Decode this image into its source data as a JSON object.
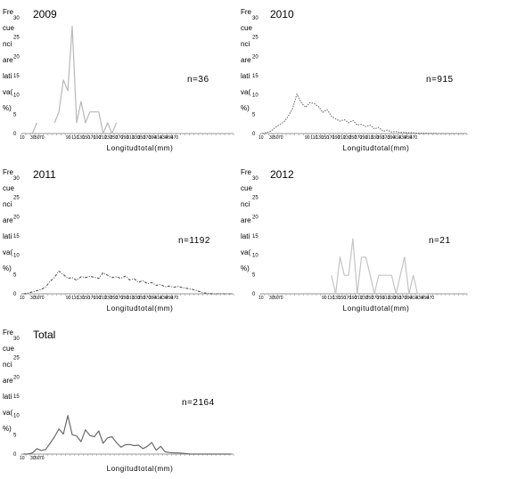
{
  "chart_data": [
    {
      "type": "line",
      "title": "2009",
      "ylabel_lines": [
        "Fre",
        "cue",
        "nci",
        "are",
        "lati",
        "va(",
        "%)"
      ],
      "xlabel": "Longitudtotal(mm)",
      "annotation": "n=36",
      "ylim": [
        0,
        30
      ],
      "yticks": [
        "0",
        "5",
        "10",
        "15",
        "20",
        "25",
        "30"
      ],
      "xticks_left": [
        "10",
        "30",
        "50",
        "70"
      ],
      "xticks_mid": [
        "90",
        "110",
        "130",
        "150",
        "170",
        "190",
        "210",
        "230",
        "250",
        "270",
        "290",
        "310",
        "330",
        "350",
        "370",
        "390",
        "410",
        "430",
        "450",
        "470"
      ],
      "line_style": "solid",
      "color": "#b8b8b8",
      "x": [
        5,
        15,
        25,
        35,
        45,
        55,
        65,
        75,
        85,
        95,
        105,
        115,
        125,
        135,
        145,
        155,
        165,
        175,
        185,
        195,
        205,
        215,
        225,
        235,
        245,
        255,
        265,
        275,
        285,
        295,
        305,
        315,
        325,
        335,
        345,
        355,
        365,
        375,
        385,
        395,
        405,
        415,
        425,
        435,
        445,
        455,
        465,
        475
      ],
      "values": [
        null,
        null,
        0,
        2.8,
        null,
        null,
        null,
        2.8,
        5.6,
        13.9,
        11.1,
        27.8,
        2.8,
        8.3,
        2.8,
        5.6,
        5.6,
        5.6,
        0,
        2.8,
        0,
        2.8,
        null,
        null,
        null,
        null,
        null,
        null,
        null,
        null,
        null,
        null,
        null,
        null,
        null,
        null,
        null,
        null,
        null,
        null,
        null,
        null,
        null,
        null,
        null,
        null,
        null,
        null
      ]
    },
    {
      "type": "line",
      "title": "2010",
      "ylabel_lines": [
        "Fre",
        "cue",
        "nci",
        "are",
        "lati",
        "va(",
        "%)"
      ],
      "xlabel": "Longitudtotal(mm)",
      "annotation": "n=915",
      "ylim": [
        0,
        30
      ],
      "yticks": [
        "0",
        "5",
        "10",
        "15",
        "20",
        "25",
        "30"
      ],
      "xticks_left": [
        "10",
        "30",
        "50",
        "70"
      ],
      "xticks_mid": [
        "90",
        "110",
        "130",
        "150",
        "170",
        "190",
        "210",
        "230",
        "250",
        "270",
        "290",
        "310",
        "330",
        "350",
        "370",
        "390",
        "410",
        "430",
        "450",
        "470"
      ],
      "line_style": "dotted",
      "color": "#6e6e6e",
      "x": [
        5,
        15,
        25,
        35,
        45,
        55,
        65,
        75,
        85,
        95,
        105,
        115,
        125,
        135,
        145,
        155,
        165,
        175,
        185,
        195,
        205,
        215,
        225,
        235,
        245,
        255,
        265,
        275,
        285,
        295,
        305,
        315,
        325,
        335,
        345,
        355,
        365,
        375,
        385,
        395,
        405,
        415,
        425,
        435,
        445,
        455,
        465,
        475
      ],
      "values": [
        0,
        0.3,
        0.6,
        1.6,
        2.3,
        3.0,
        4.5,
        6.5,
        10.2,
        8.0,
        6.8,
        8.0,
        7.8,
        7.0,
        5.5,
        6.2,
        4.5,
        3.8,
        3.2,
        3.6,
        2.8,
        3.4,
        2.2,
        2.4,
        1.8,
        2.2,
        1.2,
        1.6,
        0.6,
        0.9,
        0.4,
        0.5,
        0.3,
        0.3,
        0.2,
        0.2,
        0.1,
        0.1,
        0.1,
        0.05,
        0.05,
        0,
        0,
        0,
        0,
        0,
        0,
        0
      ]
    },
    {
      "type": "line",
      "title": "2011",
      "ylabel_lines": [
        "Fre",
        "cue",
        "nci",
        "are",
        "lati",
        "va(",
        "%)"
      ],
      "xlabel": "Longitudtotal(mm)",
      "annotation": "n=1192",
      "ylim": [
        0,
        30
      ],
      "yticks": [
        "0",
        "5",
        "10",
        "15",
        "20",
        "25",
        "30"
      ],
      "xticks_left": [
        "10",
        "30",
        "50",
        "70"
      ],
      "xticks_mid": [
        "90",
        "110",
        "130",
        "150",
        "170",
        "190",
        "210",
        "230",
        "250",
        "270",
        "290",
        "310",
        "330",
        "350",
        "370",
        "390",
        "410",
        "430",
        "450",
        "470"
      ],
      "line_style": "dashdot",
      "color": "#555555",
      "x": [
        5,
        15,
        25,
        35,
        45,
        55,
        65,
        75,
        85,
        95,
        105,
        115,
        125,
        135,
        145,
        155,
        165,
        175,
        185,
        195,
        205,
        215,
        225,
        235,
        245,
        255,
        265,
        275,
        285,
        295,
        305,
        315,
        325,
        335,
        345,
        355,
        365,
        375,
        385,
        395,
        405,
        415,
        425,
        435,
        445,
        455,
        465,
        475
      ],
      "values": [
        0,
        0.2,
        0.5,
        0.8,
        1.1,
        1.8,
        3.2,
        4.3,
        5.9,
        5.0,
        4.0,
        4.2,
        3.5,
        4.4,
        4.2,
        4.5,
        4.3,
        4.0,
        5.5,
        4.8,
        4.2,
        4.4,
        4.0,
        4.6,
        3.6,
        3.9,
        3.0,
        3.4,
        2.6,
        2.9,
        2.2,
        2.4,
        1.8,
        2.0,
        1.7,
        1.9,
        1.6,
        1.4,
        1.2,
        0.9,
        0.5,
        0.2,
        0.1,
        0,
        0,
        0,
        0,
        0
      ]
    },
    {
      "type": "line",
      "title": "2012",
      "ylabel_lines": [
        "Fre",
        "cue",
        "nci",
        "are",
        "lati",
        "va(",
        "%)"
      ],
      "xlabel": "Longitudtotal(mm)",
      "annotation": "n=21",
      "ylim": [
        0,
        30
      ],
      "yticks": [
        "0",
        "5",
        "10",
        "15",
        "20",
        "25",
        "30"
      ],
      "xticks_left": [
        "10",
        "30",
        "50",
        "70"
      ],
      "xticks_mid": [
        "90",
        "110",
        "130",
        "150",
        "170",
        "190",
        "210",
        "230",
        "250",
        "270",
        "290",
        "310",
        "330",
        "350",
        "370",
        "390",
        "410",
        "430",
        "450",
        "470"
      ],
      "line_style": "solid",
      "color": "#c4c4c4",
      "x": [
        5,
        15,
        25,
        35,
        45,
        55,
        65,
        75,
        85,
        95,
        105,
        115,
        125,
        135,
        145,
        155,
        165,
        175,
        185,
        195,
        205,
        215,
        225,
        235,
        245,
        255,
        265,
        275,
        285,
        295,
        305,
        315,
        325,
        335,
        345,
        355,
        365,
        375,
        385,
        395,
        405,
        415,
        425,
        435,
        445,
        455,
        465,
        475
      ],
      "values": [
        null,
        null,
        null,
        null,
        null,
        null,
        null,
        null,
        null,
        null,
        null,
        null,
        null,
        null,
        null,
        null,
        4.8,
        0,
        9.5,
        4.8,
        4.8,
        14.3,
        0,
        9.5,
        9.5,
        4.8,
        0,
        4.8,
        4.8,
        4.8,
        4.8,
        0,
        4.8,
        9.5,
        0,
        4.8,
        0,
        0,
        0,
        null,
        null,
        null,
        null,
        null,
        null,
        null,
        null,
        null
      ]
    },
    {
      "type": "line",
      "title": "Total",
      "ylabel_lines": [
        "Fre",
        "cue",
        "nci",
        "are",
        "lati",
        "va(",
        "%)"
      ],
      "xlabel": "Longitudtotal(mm)",
      "annotation": "n=2164",
      "ylim": [
        0,
        30
      ],
      "yticks": [
        "0",
        "5",
        "10",
        "15",
        "20",
        "25",
        "30"
      ],
      "xticks_left": [
        "10",
        "30",
        "50",
        "70"
      ],
      "xticks_mid": [],
      "line_style": "solid",
      "color": "#6a6a6a",
      "x": [
        5,
        15,
        25,
        35,
        45,
        55,
        65,
        75,
        85,
        95,
        105,
        115,
        125,
        135,
        145,
        155,
        165,
        175,
        185,
        195,
        205,
        215,
        225,
        235,
        245,
        255,
        265,
        275,
        285,
        295,
        305,
        315,
        325,
        335,
        345,
        355,
        365,
        375,
        385,
        395,
        405,
        415,
        425,
        435,
        445,
        455,
        465,
        475
      ],
      "values": [
        0,
        0,
        0.3,
        1.4,
        0.9,
        1.2,
        2.8,
        4.5,
        6.5,
        5.2,
        10.0,
        5.0,
        4.7,
        3.2,
        6.3,
        4.8,
        4.5,
        6.0,
        2.8,
        4.2,
        4.5,
        3.0,
        1.8,
        2.4,
        2.5,
        2.2,
        2.3,
        1.4,
        2.0,
        3.0,
        1.0,
        2.0,
        0.6,
        0.4,
        0.3,
        0.3,
        0.2,
        0.1,
        0,
        0,
        0,
        0,
        0,
        0,
        0,
        0,
        0,
        0
      ]
    }
  ]
}
